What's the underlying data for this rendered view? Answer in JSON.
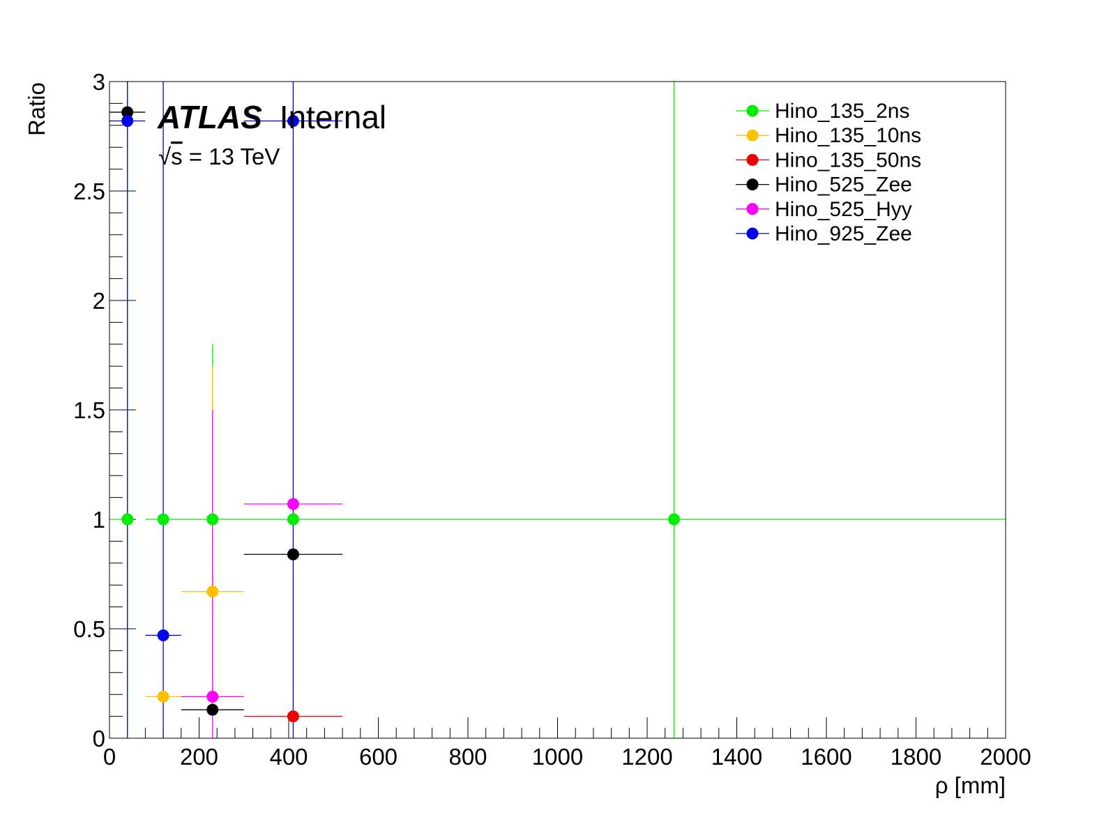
{
  "chart_data": {
    "type": "scatter",
    "title": "",
    "xlabel": "ρ [mm]",
    "ylabel": "Ratio",
    "xlim": [
      0,
      2000
    ],
    "ylim": [
      0,
      3
    ],
    "x_ticks": [
      "0",
      "200",
      "400",
      "600",
      "800",
      "1000",
      "1200",
      "1400",
      "1600",
      "1800",
      "2000"
    ],
    "y_ticks": [
      "0",
      "0.5",
      "1",
      "1.5",
      "2",
      "2.5",
      "3"
    ],
    "x_tick_values": [
      0,
      200,
      400,
      600,
      800,
      1000,
      1200,
      1400,
      1600,
      1800,
      2000
    ],
    "y_tick_values": [
      0,
      0.5,
      1,
      1.5,
      2,
      2.5,
      3
    ],
    "grid": false,
    "legend_position": "top-right",
    "annotations": {
      "atlas_bold": "ATLAS",
      "atlas_label": "Internal",
      "sqrt_symbol": "√",
      "energy_s": "s",
      "energy_rest": " = 13 TeV"
    },
    "bins": [
      {
        "low": 0,
        "high": 50,
        "center": 40
      },
      {
        "low": 80,
        "high": 160,
        "center": 120
      },
      {
        "low": 160,
        "high": 300,
        "center": 230
      },
      {
        "low": 300,
        "high": 520,
        "center": 410
      },
      {
        "low": 520,
        "high": 2000,
        "center": 1260
      }
    ],
    "series": [
      {
        "name": "Hino_135_2ns",
        "color": "#00ee00",
        "points": [
          {
            "x": 40,
            "y": 1.0,
            "xlo": 0,
            "xhi": 50,
            "ylo": 0,
            "yhi": 3
          },
          {
            "x": 120,
            "y": 1.0,
            "xlo": 80,
            "xhi": 160
          },
          {
            "x": 230,
            "y": 1.0,
            "xlo": 160,
            "xhi": 300,
            "ylo": 0.2,
            "yhi": 1.8
          },
          {
            "x": 410,
            "y": 1.0,
            "xlo": 300,
            "xhi": 520
          },
          {
            "x": 1260,
            "y": 1.0,
            "xlo": 520,
            "xhi": 2000,
            "ylo": 0,
            "yhi": 3
          }
        ]
      },
      {
        "name": "Hino_135_10ns",
        "color": "#ffc000",
        "points": [
          {
            "x": 120,
            "y": 0.19,
            "xlo": 80,
            "xhi": 160
          },
          {
            "x": 230,
            "y": 0.67,
            "xlo": 160,
            "xhi": 300,
            "ylo": 0.1,
            "yhi": 1.7
          }
        ]
      },
      {
        "name": "Hino_135_50ns",
        "color": "#ee0000",
        "points": [
          {
            "x": 410,
            "y": 0.1,
            "xlo": 300,
            "xhi": 520
          }
        ]
      },
      {
        "name": "Hino_525_Zee",
        "color": "#000000",
        "points": [
          {
            "x": 40,
            "y": 2.86,
            "xlo": 0,
            "xhi": 80,
            "ylo": 2.83,
            "yhi": 2.89
          },
          {
            "x": 230,
            "y": 0.13,
            "xlo": 160,
            "xhi": 300
          },
          {
            "x": 410,
            "y": 0.84,
            "xlo": 300,
            "xhi": 520
          }
        ]
      },
      {
        "name": "Hino_525_Hyy",
        "color": "#ff00ff",
        "points": [
          {
            "x": 230,
            "y": 0.19,
            "xlo": 160,
            "xhi": 300,
            "ylo": 0,
            "yhi": 1.5
          },
          {
            "x": 410,
            "y": 1.07,
            "xlo": 300,
            "xhi": 520
          }
        ]
      },
      {
        "name": "Hino_925_Zee",
        "color": "#0000ee",
        "points": [
          {
            "x": 40,
            "y": 2.82,
            "xlo": 0,
            "xhi": 80,
            "ylo": 0,
            "yhi": 3
          },
          {
            "x": 120,
            "y": 0.47,
            "xlo": 80,
            "xhi": 160,
            "ylo": 0,
            "yhi": 3
          },
          {
            "x": 410,
            "y": 2.82,
            "xlo": 300,
            "xhi": 520,
            "ylo": 0,
            "yhi": 3
          }
        ]
      }
    ]
  }
}
